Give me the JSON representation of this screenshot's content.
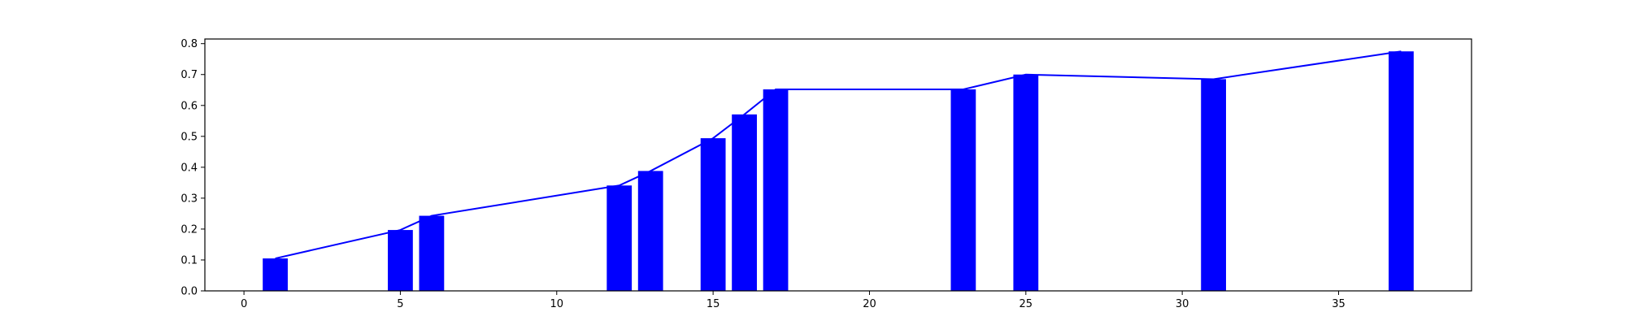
{
  "chart_data": {
    "type": "bar",
    "x": [
      1,
      5,
      6,
      12,
      13,
      15,
      16,
      17,
      23,
      25,
      31,
      37
    ],
    "values": [
      0.105,
      0.197,
      0.243,
      0.341,
      0.388,
      0.494,
      0.571,
      0.652,
      0.652,
      0.7,
      0.685,
      0.775
    ],
    "series": [
      {
        "type": "bar",
        "color": "#0000ff",
        "values": [
          0.105,
          0.197,
          0.243,
          0.341,
          0.388,
          0.494,
          0.571,
          0.652,
          0.652,
          0.7,
          0.685,
          0.775
        ]
      },
      {
        "type": "line",
        "color": "#0000ff",
        "values": [
          0.105,
          0.197,
          0.243,
          0.341,
          0.388,
          0.494,
          0.571,
          0.652,
          0.652,
          0.7,
          0.685,
          0.775
        ]
      }
    ],
    "title": "",
    "xlabel": "",
    "ylabel": "",
    "xlim": [
      -1.25,
      39.25
    ],
    "ylim": [
      0,
      0.815
    ],
    "xticks": [
      "0",
      "5",
      "10",
      "15",
      "20",
      "25",
      "30",
      "35"
    ],
    "yticks": [
      "0.0",
      "0.1",
      "0.2",
      "0.3",
      "0.4",
      "0.5",
      "0.6",
      "0.7",
      "0.8"
    ],
    "bar_width": 0.8,
    "grid": false,
    "legend": "none"
  }
}
